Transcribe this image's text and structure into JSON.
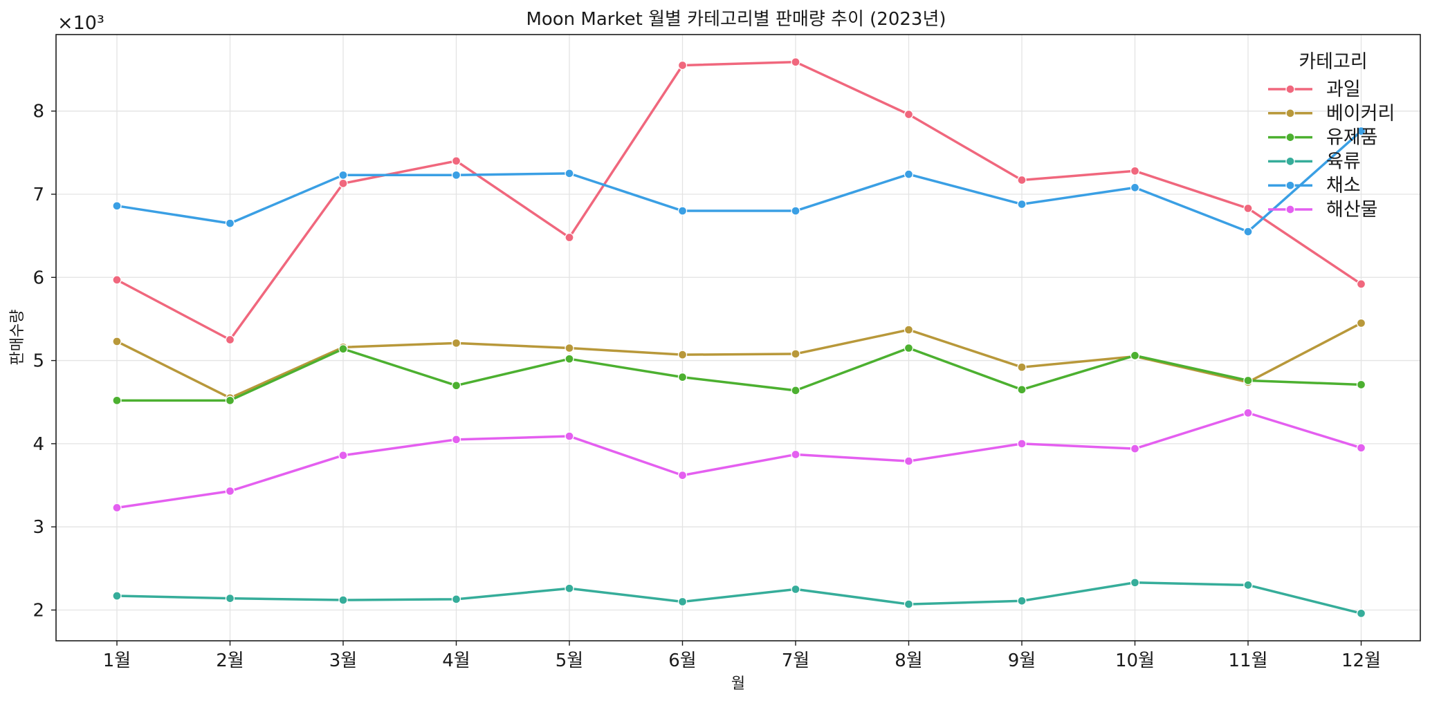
{
  "chart_data": {
    "type": "line",
    "title": "Moon Market 월별 카테고리별 판매량 추이 (2023년)",
    "xlabel": "월",
    "ylabel": "판매수량",
    "y_multiplier_label": "×10³",
    "y_tick_labels": [
      "2",
      "3",
      "4",
      "5",
      "6",
      "7",
      "8"
    ],
    "y_scale": 1000,
    "ylim": [
      1630,
      8920
    ],
    "grid": true,
    "legend": {
      "title": "카테고리",
      "placement": "top-right"
    },
    "categories": [
      "1월",
      "2월",
      "3월",
      "4월",
      "5월",
      "6월",
      "7월",
      "8월",
      "9월",
      "10월",
      "11월",
      "12월"
    ],
    "series": [
      {
        "name": "과일",
        "color": "#f0677d",
        "values": [
          5970,
          5250,
          7130,
          7400,
          6480,
          8550,
          8590,
          7960,
          7170,
          7280,
          6830,
          5920
        ]
      },
      {
        "name": "베이커리",
        "color": "#b8983a",
        "values": [
          5230,
          4550,
          5160,
          5210,
          5150,
          5070,
          5080,
          5370,
          4920,
          5050,
          4740,
          5450
        ]
      },
      {
        "name": "유제품",
        "color": "#4cb030",
        "values": [
          4520,
          4520,
          5140,
          4700,
          5020,
          4800,
          4640,
          5150,
          4650,
          5060,
          4760,
          4710
        ]
      },
      {
        "name": "육류",
        "color": "#36ad9a",
        "values": [
          2170,
          2140,
          2120,
          2130,
          2260,
          2100,
          2250,
          2070,
          2110,
          2330,
          2300,
          1960
        ]
      },
      {
        "name": "채소",
        "color": "#3a9fe4",
        "values": [
          6860,
          6650,
          7230,
          7230,
          7250,
          6800,
          6800,
          7240,
          6880,
          7080,
          6550,
          7760
        ]
      },
      {
        "name": "해산물",
        "color": "#e45ff0",
        "values": [
          3230,
          3430,
          3860,
          4050,
          4090,
          3620,
          3870,
          3790,
          4000,
          3940,
          4370,
          3950
        ]
      }
    ]
  }
}
